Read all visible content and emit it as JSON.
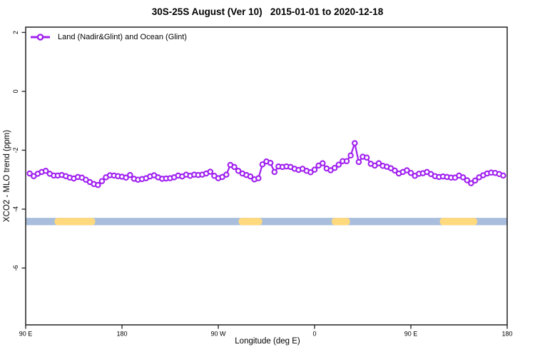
{
  "header": {
    "title": "30S-25S August (Ver 10)   2015-01-01 to 2020-12-18"
  },
  "legend": {
    "label": "Land (Nadir&Glint) and Ocean (Glint)"
  },
  "axes": {
    "xlabel": "Longitude (deg E)",
    "ylabel": "XCO2 - MLO trend (ppm)",
    "x_ticks": [
      {
        "lon": 90,
        "label": "90 E"
      },
      {
        "lon": 180,
        "label": "180"
      },
      {
        "lon": 270,
        "label": "90 W"
      },
      {
        "lon": 360,
        "label": "0"
      },
      {
        "lon": 450,
        "label": "90 E"
      },
      {
        "lon": 540,
        "label": "180"
      }
    ],
    "y_ticks": [
      {
        "value": 2,
        "label": "2"
      },
      {
        "value": 0,
        "label": "0"
      },
      {
        "value": -2,
        "label": "-2"
      },
      {
        "value": -4,
        "label": "-4"
      },
      {
        "value": -6,
        "label": "-6"
      }
    ]
  },
  "colors": {
    "line": "#A020F0",
    "marker_fill": "#FFFFFF",
    "ocean_band": "#A9BEDC",
    "land_band": "#FFD97E",
    "axis": "#2E2E2E",
    "text": "#000000"
  },
  "chart_data": {
    "type": "line",
    "title": "30S-25S August (Ver 10)   2015-01-01 to 2020-12-18",
    "xlabel": "Longitude (deg E)",
    "ylabel": "XCO2 - MLO trend (ppm)",
    "xlim": [
      90,
      540
    ],
    "ylim": [
      -7.93,
      2.18
    ],
    "x_tick_lons": [
      90,
      180,
      270,
      360,
      450,
      540
    ],
    "x_tick_labels": [
      "90 E",
      "180",
      "90 W",
      "0",
      "90 E",
      "180"
    ],
    "y_tick_values": [
      2,
      0,
      -2,
      -4,
      -6
    ],
    "grid": false,
    "legend_position": "top-left",
    "x_start": 93.75,
    "x_step": 3.75,
    "series": [
      {
        "name": "Land (Nadir&Glint) and Ocean (Glint)",
        "marker": "open-circle",
        "color": "#A020F0",
        "values": [
          -2.79,
          -2.88,
          -2.8,
          -2.74,
          -2.7,
          -2.8,
          -2.86,
          -2.86,
          -2.84,
          -2.88,
          -2.93,
          -2.96,
          -2.91,
          -2.93,
          -3.0,
          -3.08,
          -3.15,
          -3.18,
          -3.05,
          -2.92,
          -2.85,
          -2.86,
          -2.88,
          -2.9,
          -2.93,
          -2.84,
          -2.97,
          -3.0,
          -2.98,
          -2.95,
          -2.89,
          -2.85,
          -2.92,
          -2.97,
          -2.96,
          -2.95,
          -2.92,
          -2.86,
          -2.89,
          -2.83,
          -2.87,
          -2.83,
          -2.84,
          -2.83,
          -2.79,
          -2.73,
          -2.87,
          -2.95,
          -2.91,
          -2.83,
          -2.5,
          -2.57,
          -2.7,
          -2.79,
          -2.84,
          -2.89,
          -2.99,
          -2.95,
          -2.48,
          -2.38,
          -2.43,
          -2.74,
          -2.55,
          -2.57,
          -2.55,
          -2.57,
          -2.63,
          -2.67,
          -2.63,
          -2.7,
          -2.75,
          -2.66,
          -2.52,
          -2.44,
          -2.62,
          -2.68,
          -2.6,
          -2.49,
          -2.37,
          -2.37,
          -2.18,
          -1.76,
          -2.4,
          -2.22,
          -2.25,
          -2.46,
          -2.52,
          -2.44,
          -2.53,
          -2.56,
          -2.61,
          -2.69,
          -2.79,
          -2.74,
          -2.68,
          -2.77,
          -2.87,
          -2.8,
          -2.78,
          -2.74,
          -2.81,
          -2.88,
          -2.91,
          -2.89,
          -2.91,
          -2.93,
          -2.93,
          -2.86,
          -2.92,
          -3.02,
          -3.12,
          -3.03,
          -2.92,
          -2.85,
          -2.79,
          -2.76,
          -2.77,
          -2.81,
          -2.86
        ]
      }
    ],
    "band": {
      "description": "land/ocean indicator bar",
      "y_center": -4.42,
      "half_height": 0.125,
      "range_lon": [
        90,
        540
      ],
      "land_segments_lon": [
        [
          117,
          155
        ],
        [
          289,
          311
        ],
        [
          376,
          393
        ],
        [
          477,
          512
        ]
      ]
    }
  }
}
